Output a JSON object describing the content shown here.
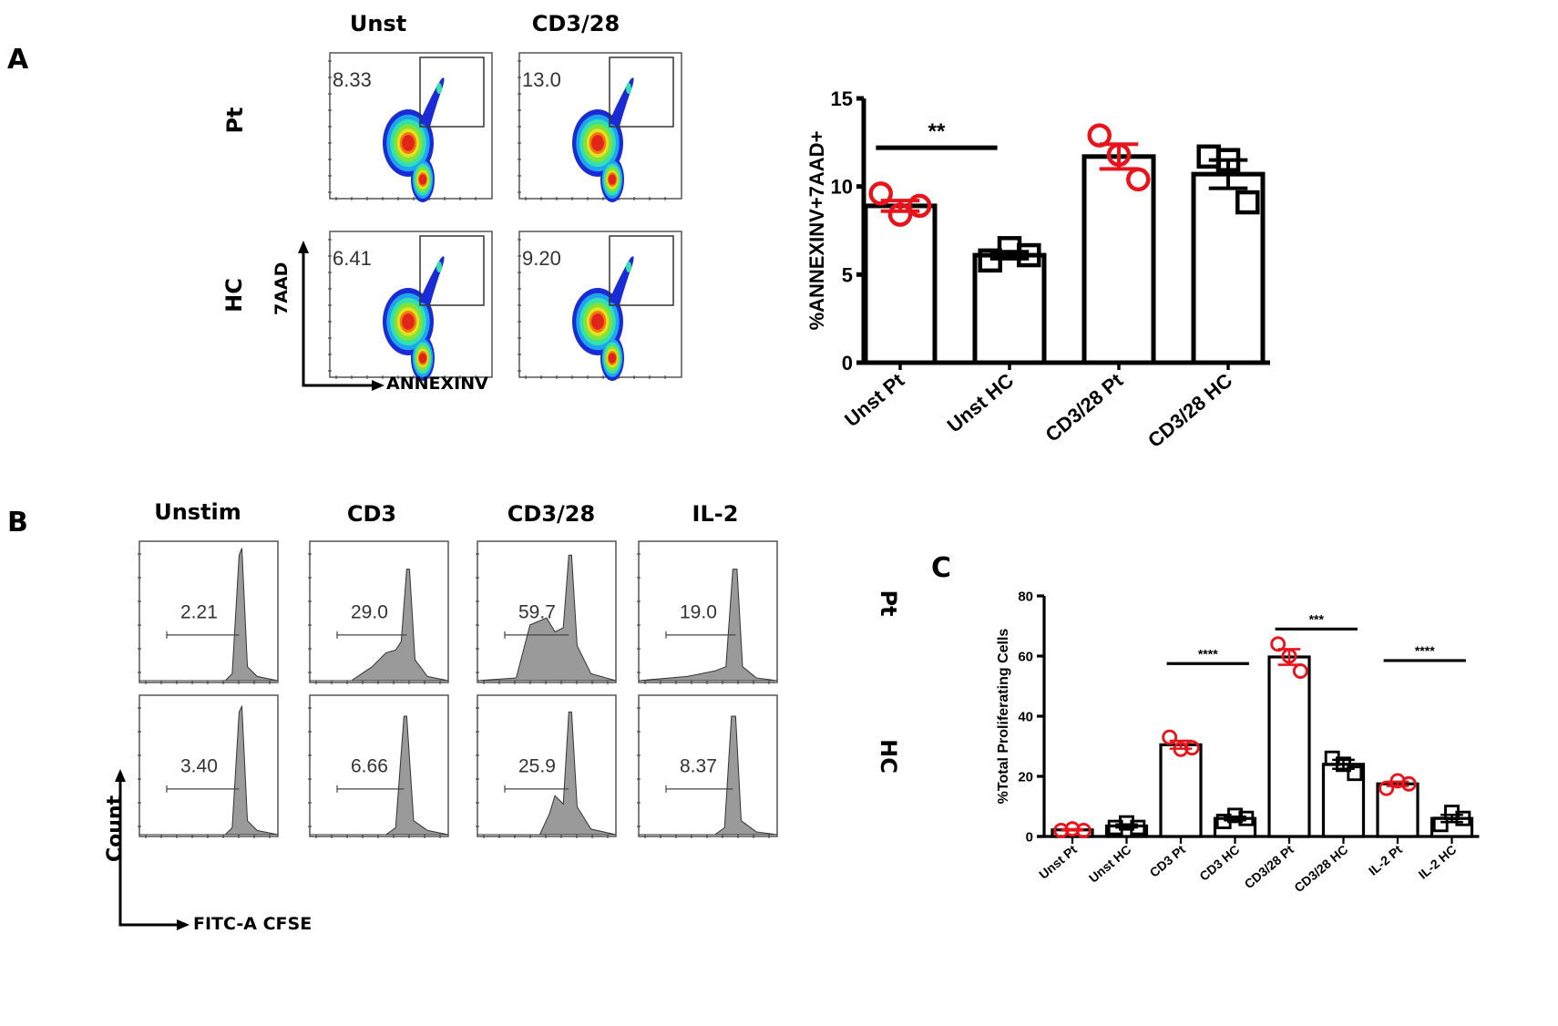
{
  "panels": {
    "A": {
      "letter": "A",
      "flow": {
        "columns": [
          "Unst",
          "CD3/28"
        ],
        "rows": [
          "Pt",
          "HC"
        ],
        "values": [
          [
            "8.33",
            "13.0"
          ],
          [
            "6.41",
            "9.20"
          ]
        ],
        "x_axis_label": "ANNEXINV",
        "y_axis_label": "7AAD"
      }
    },
    "B": {
      "letter": "B",
      "flow": {
        "columns": [
          "Unstim",
          "CD3",
          "CD3/28",
          "IL-2"
        ],
        "rows": [
          "Pt",
          "HC"
        ],
        "values": [
          [
            "2.21",
            "29.0",
            "59.7",
            "19.0"
          ],
          [
            "3.40",
            "6.66",
            "25.9",
            "8.37"
          ]
        ],
        "x_axis_label": "FITC-A CFSE",
        "y_axis_label": "Count"
      }
    },
    "C": {
      "letter": "C"
    }
  },
  "colors": {
    "patient": "#e8141b",
    "control": "#000000",
    "histogram_fill": "#9a9a9a"
  },
  "chart_data": [
    {
      "id": "A",
      "type": "bar",
      "title": "",
      "xlabel": "",
      "ylabel": "%ANNEXINV+7AAD+",
      "ylim": [
        0,
        15
      ],
      "yticks": [
        0,
        5,
        10,
        15
      ],
      "categories": [
        "Unst Pt",
        "Unst HC",
        "CD3/28 Pt",
        "CD3/28 HC"
      ],
      "values": [
        8.9,
        6.1,
        11.7,
        10.7
      ],
      "sem": [
        0.3,
        0.2,
        0.7,
        0.8
      ],
      "points": [
        [
          9.6,
          8.4,
          8.9
        ],
        [
          5.8,
          6.5,
          6.1
        ],
        [
          12.9,
          11.8,
          10.4
        ],
        [
          11.7,
          11.5,
          9.1
        ]
      ],
      "marker": [
        "circle",
        "square",
        "circle",
        "square"
      ],
      "group": [
        "Pt",
        "HC",
        "Pt",
        "HC"
      ],
      "significance": [
        {
          "from": 0,
          "to": 1,
          "label": "**",
          "y": 12.2
        }
      ]
    },
    {
      "id": "C",
      "type": "bar",
      "title": "",
      "xlabel": "",
      "ylabel": "%Total Proliferating Cells",
      "ylim": [
        0,
        80
      ],
      "yticks": [
        0,
        20,
        40,
        60,
        80
      ],
      "categories": [
        "Unst Pt",
        "Unst HC",
        "CD3 Pt",
        "CD3 HC",
        "CD3/28 Pt",
        "CD3/28 HC",
        "IL-2 Pt",
        "IL-2 HC"
      ],
      "values": [
        2.2,
        3.5,
        30.5,
        6.0,
        59.7,
        24.0,
        17.5,
        6.0
      ],
      "sem": [
        0.2,
        0.5,
        1.3,
        0.6,
        2.6,
        1.5,
        0.7,
        1.2
      ],
      "points": [
        [
          2.0,
          2.5,
          2.0
        ],
        [
          3.0,
          4.5,
          3.0
        ],
        [
          33.0,
          29.0,
          29.5
        ],
        [
          5.0,
          7.0,
          6.0
        ],
        [
          64.0,
          60.0,
          55.0
        ],
        [
          26.0,
          24.0,
          21.0
        ],
        [
          16.0,
          18.5,
          17.5
        ],
        [
          4.0,
          8.0,
          6.0
        ]
      ],
      "marker": [
        "circle",
        "square",
        "circle",
        "square",
        "circle",
        "square",
        "circle",
        "square"
      ],
      "group": [
        "Pt",
        "HC",
        "Pt",
        "HC",
        "Pt",
        "HC",
        "Pt",
        "HC"
      ],
      "significance": [
        {
          "from": 2,
          "to": 3,
          "label": "****",
          "y": 57.5
        },
        {
          "from": 4,
          "to": 5,
          "label": "***",
          "y": 69
        },
        {
          "from": 6,
          "to": 7,
          "label": "****",
          "y": 58.5
        }
      ]
    }
  ]
}
